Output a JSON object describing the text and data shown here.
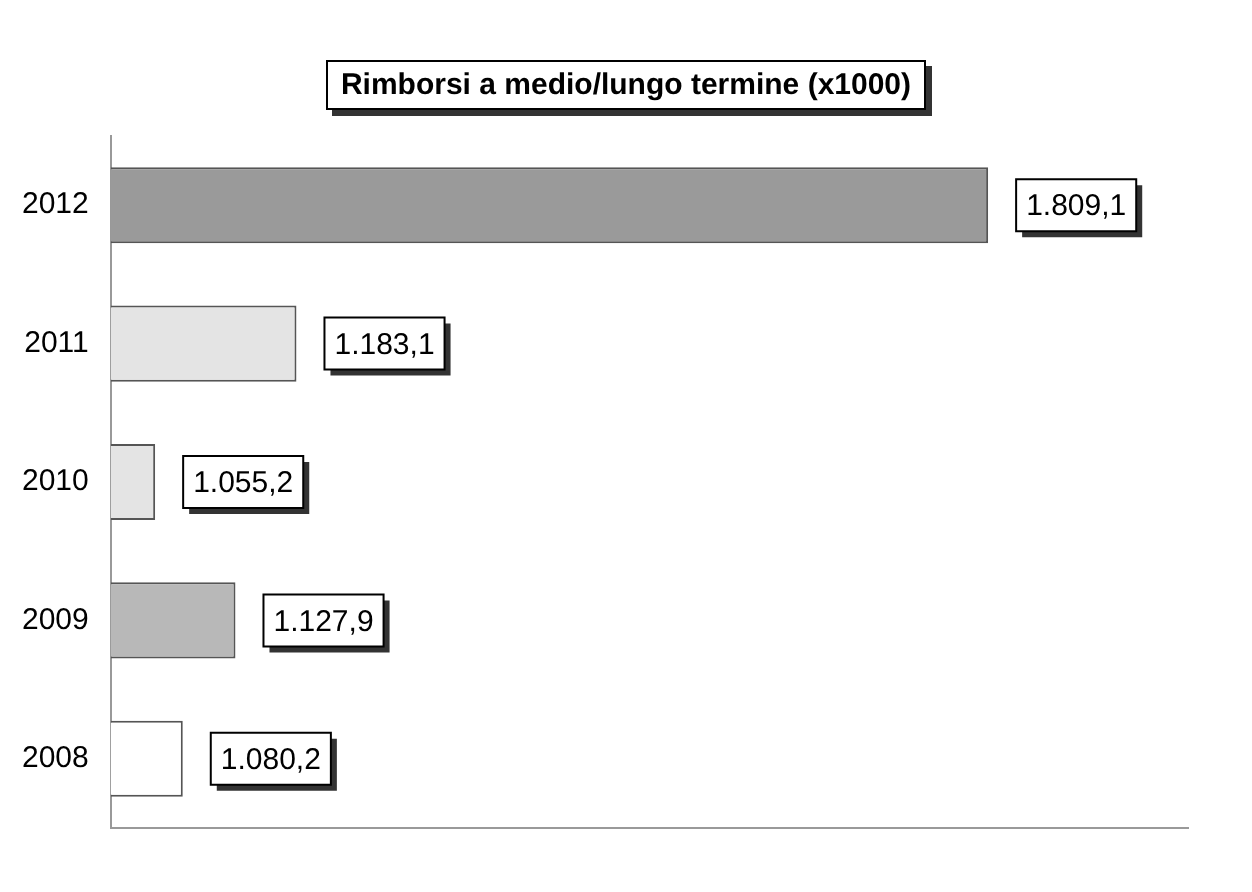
{
  "chart_data": {
    "type": "bar",
    "orientation": "horizontal",
    "title": "Rimborsi a medio/lungo termine (x1000)",
    "categories": [
      "2012",
      "2011",
      "2010",
      "2009",
      "2008"
    ],
    "values": [
      1809.1,
      1183.1,
      1055.2,
      1127.9,
      1080.2
    ],
    "colors": [
      "#9a9a9a",
      "#e4e4e4",
      "#e4e4e4",
      "#b8b8b8",
      "#ffffff"
    ],
    "value_labels": [
      "1.809,1",
      "1.183,1",
      "1.055,2",
      "1.127,9",
      "1.080,2"
    ],
    "xlim": [
      1015,
      1990
    ],
    "tick_labels": "y",
    "grid": false,
    "legend": false
  }
}
